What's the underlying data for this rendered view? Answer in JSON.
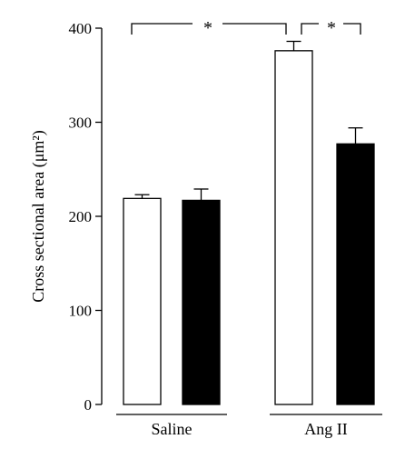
{
  "chart_data": {
    "type": "bar",
    "categories": [
      "Saline",
      "Ang II"
    ],
    "series": [
      {
        "fill": "#ffffff",
        "values": [
          219,
          376
        ],
        "errors": [
          4,
          10
        ]
      },
      {
        "fill": "#000000",
        "values": [
          217,
          277
        ],
        "errors": [
          12,
          17
        ]
      }
    ],
    "ylabel": "Cross sectional area (μm²)",
    "ylim": [
      0,
      400
    ],
    "yticks": [
      0,
      100,
      200,
      300,
      400
    ],
    "grid": false,
    "significance": [
      {
        "label": "*",
        "from": "Saline",
        "to": "Ang II"
      },
      {
        "label": "*",
        "from": "Ang II (white)",
        "to": "Ang II (black)"
      }
    ]
  }
}
